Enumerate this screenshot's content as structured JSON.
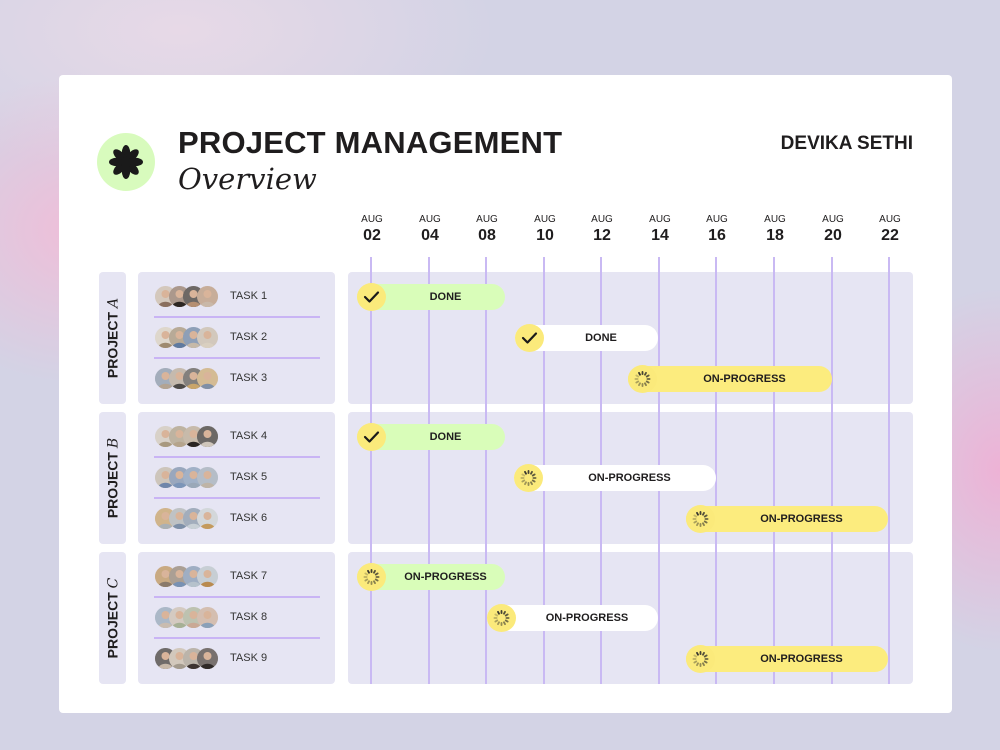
{
  "header": {
    "title": "PROJECT MANAGEMENT",
    "subtitle": "Overview",
    "author": "DEVIKA SETHI",
    "logo_icon": "flower-asterisk-icon"
  },
  "colors": {
    "done_green": "#d9fdb9",
    "white": "#ffffff",
    "yellow": "#fcec7e",
    "grid": "#c9b9f3",
    "block_bg": "#e6e5f3",
    "logo_bg": "#d8fbbd"
  },
  "timeline": {
    "dates": [
      {
        "month": "AUG",
        "day": "02"
      },
      {
        "month": "AUG",
        "day": "04"
      },
      {
        "month": "AUG",
        "day": "08"
      },
      {
        "month": "AUG",
        "day": "10"
      },
      {
        "month": "AUG",
        "day": "12"
      },
      {
        "month": "AUG",
        "day": "14"
      },
      {
        "month": "AUG",
        "day": "16"
      },
      {
        "month": "AUG",
        "day": "18"
      },
      {
        "month": "AUG",
        "day": "20"
      },
      {
        "month": "AUG",
        "day": "22"
      }
    ]
  },
  "projects": [
    {
      "label": "PROJECT",
      "letter": "A",
      "tasks": [
        {
          "name": "TASK 1",
          "status": "DONE",
          "icon": "check-icon"
        },
        {
          "name": "TASK 2",
          "status": "DONE",
          "icon": "check-icon"
        },
        {
          "name": "TASK 3",
          "status": "ON-PROGRESS",
          "icon": "spinner-icon"
        }
      ]
    },
    {
      "label": "PROJECT",
      "letter": "B",
      "tasks": [
        {
          "name": "TASK 4",
          "status": "DONE",
          "icon": "check-icon"
        },
        {
          "name": "TASK 5",
          "status": "ON-PROGRESS",
          "icon": "spinner-icon"
        },
        {
          "name": "TASK 6",
          "status": "ON-PROGRESS",
          "icon": "spinner-icon"
        }
      ]
    },
    {
      "label": "PROJECT",
      "letter": "C",
      "tasks": [
        {
          "name": "TASK 7",
          "status": "ON-PROGRESS",
          "icon": "spinner-icon"
        },
        {
          "name": "TASK 8",
          "status": "ON-PROGRESS",
          "icon": "spinner-icon"
        },
        {
          "name": "TASK 9",
          "status": "ON-PROGRESS",
          "icon": "spinner-icon"
        }
      ]
    }
  ],
  "chart_data": {
    "type": "table",
    "title": "PROJECT MANAGEMENT Overview",
    "subtitle": "Gantt timeline",
    "x_ticks": [
      "AUG 02",
      "AUG 04",
      "AUG 08",
      "AUG 10",
      "AUG 12",
      "AUG 14",
      "AUG 16",
      "AUG 18",
      "AUG 20",
      "AUG 22"
    ],
    "rows": [
      {
        "project": "PROJECT A",
        "task": "TASK 1",
        "start": "AUG 02",
        "end": "AUG 08",
        "status": "DONE",
        "color": "green"
      },
      {
        "project": "PROJECT A",
        "task": "TASK 2",
        "start": "AUG 10",
        "end": "AUG 14",
        "status": "DONE",
        "color": "white"
      },
      {
        "project": "PROJECT A",
        "task": "TASK 3",
        "start": "AUG 14",
        "end": "AUG 20",
        "status": "ON-PROGRESS",
        "color": "yellow"
      },
      {
        "project": "PROJECT B",
        "task": "TASK 4",
        "start": "AUG 02",
        "end": "AUG 08",
        "status": "DONE",
        "color": "green"
      },
      {
        "project": "PROJECT B",
        "task": "TASK 5",
        "start": "AUG 10",
        "end": "AUG 16",
        "status": "ON-PROGRESS",
        "color": "white"
      },
      {
        "project": "PROJECT B",
        "task": "TASK 6",
        "start": "AUG 16",
        "end": "AUG 22",
        "status": "ON-PROGRESS",
        "color": "yellow"
      },
      {
        "project": "PROJECT C",
        "task": "TASK 7",
        "start": "AUG 02",
        "end": "AUG 08",
        "status": "ON-PROGRESS",
        "color": "green"
      },
      {
        "project": "PROJECT C",
        "task": "TASK 8",
        "start": "AUG 08",
        "end": "AUG 14",
        "status": "ON-PROGRESS",
        "color": "white"
      },
      {
        "project": "PROJECT C",
        "task": "TASK 9",
        "start": "AUG 16",
        "end": "AUG 22",
        "status": "ON-PROGRESS",
        "color": "yellow"
      }
    ]
  }
}
